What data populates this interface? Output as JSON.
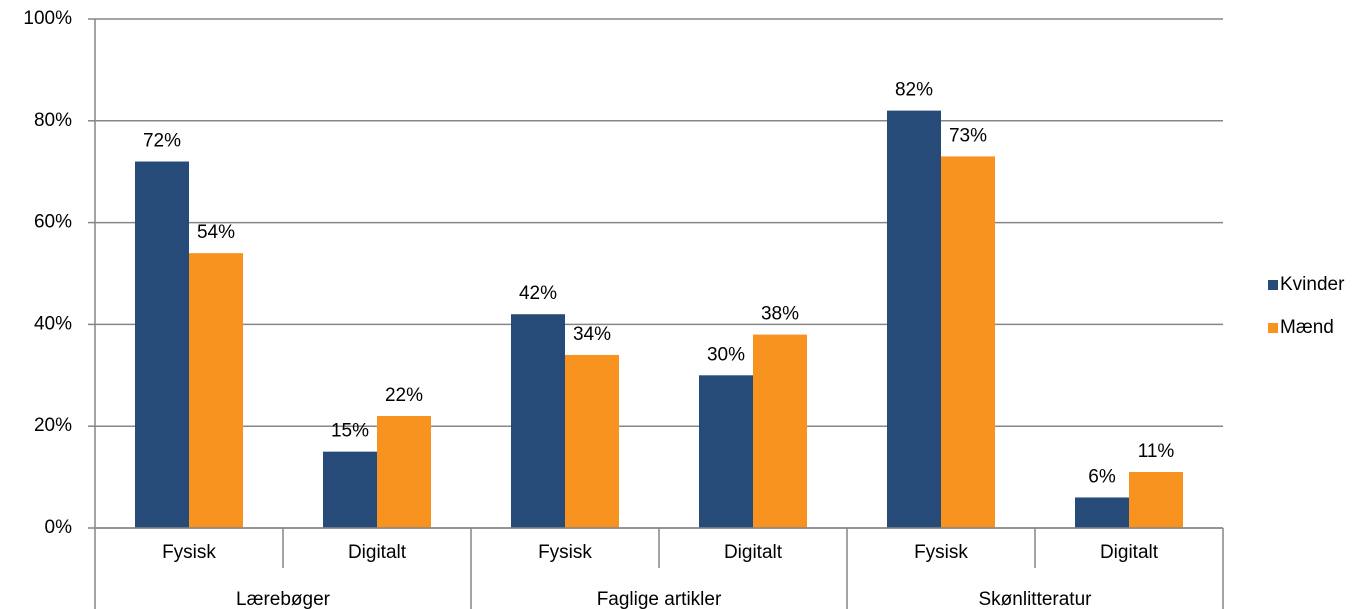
{
  "chart_data": {
    "type": "bar",
    "categories": [
      "Fysisk",
      "Digitalt",
      "Fysisk",
      "Digitalt",
      "Fysisk",
      "Digitalt"
    ],
    "group_labels": [
      "Lærebøger",
      "Faglige artikler",
      "Skønlitteratur"
    ],
    "series": [
      {
        "name": "Kvinder",
        "color": "#264b78",
        "values": [
          72,
          15,
          42,
          30,
          82,
          6
        ],
        "value_labels": [
          "72%",
          "15%",
          "42%",
          "30%",
          "82%",
          "6%"
        ]
      },
      {
        "name": "Mænd",
        "color": "#f7931e",
        "values": [
          54,
          22,
          34,
          38,
          73,
          11
        ],
        "value_labels": [
          "54%",
          "22%",
          "34%",
          "38%",
          "73%",
          "11%"
        ]
      }
    ],
    "ylim": [
      0,
      100
    ],
    "yticks": [
      {
        "value": 0,
        "label": "0%"
      },
      {
        "value": 20,
        "label": "20%"
      },
      {
        "value": 40,
        "label": "40%"
      },
      {
        "value": 60,
        "label": "60%"
      },
      {
        "value": 80,
        "label": "80%"
      },
      {
        "value": 100,
        "label": "100%"
      }
    ],
    "grid": true,
    "legend": "right"
  }
}
